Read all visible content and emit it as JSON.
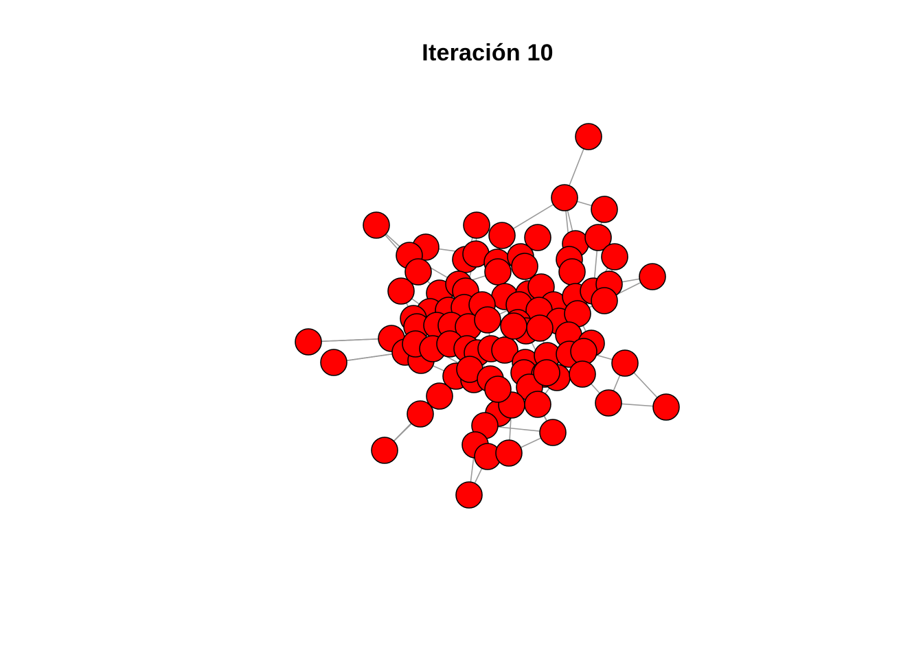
{
  "title": "Iteración 10",
  "colors": {
    "background": "#ffffff",
    "node_fill": "#ff0000",
    "node_stroke": "#000000",
    "edge": "#999999",
    "title": "#000000"
  }
}
